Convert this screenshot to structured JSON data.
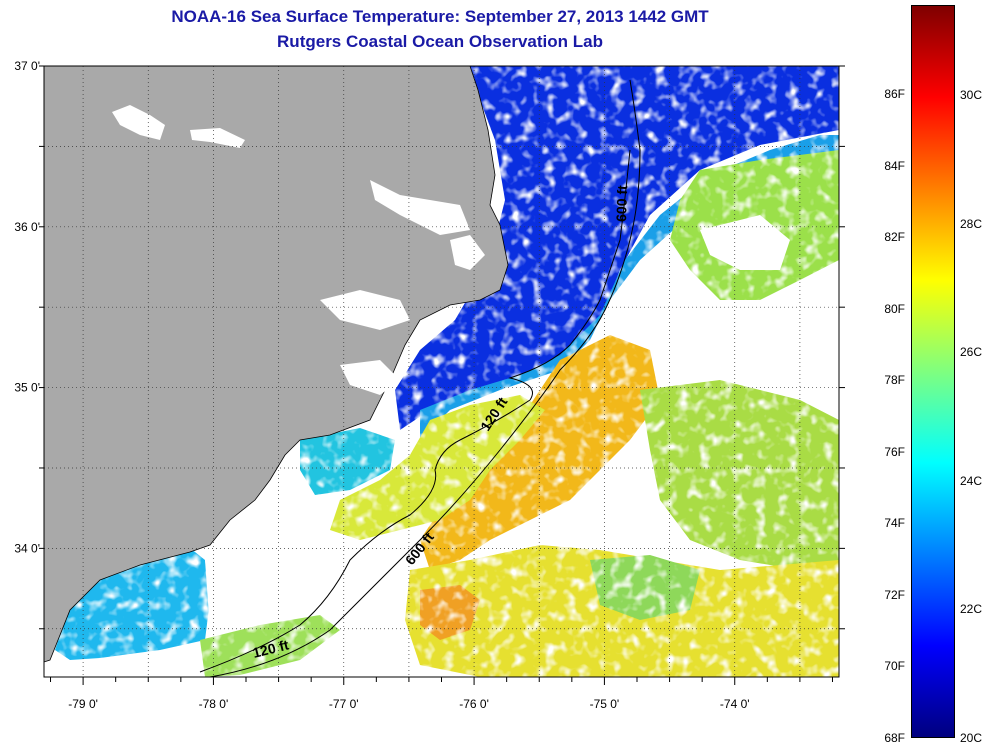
{
  "title": {
    "line1": "NOAA-16 Sea Surface Temperature:  September 27, 2013 1442 GMT",
    "line2": "Rutgers Coastal Ocean Observation Lab"
  },
  "map": {
    "lon_range": [
      -79.3,
      -73.2
    ],
    "lat_range": [
      33.2,
      37.0
    ],
    "lon_ticks": [
      {
        "value": -79,
        "label": "-79 0'"
      },
      {
        "value": -78,
        "label": "-78 0'"
      },
      {
        "value": -77,
        "label": "-77 0'"
      },
      {
        "value": -76,
        "label": "-76 0'"
      },
      {
        "value": -75,
        "label": "-75 0'"
      },
      {
        "value": -74,
        "label": "-74 0'"
      }
    ],
    "lat_ticks": [
      {
        "value": 37,
        "label": "37 0'"
      },
      {
        "value": 36,
        "label": "36 0'"
      },
      {
        "value": 35,
        "label": "35 0'"
      },
      {
        "value": 34,
        "label": "34 0'"
      }
    ],
    "grid": "dotted",
    "land_color": "#a9a9a9",
    "contours": [
      {
        "label": "120 ft"
      },
      {
        "label": "120 ft"
      },
      {
        "label": "600 ft"
      },
      {
        "label": "600 ft"
      }
    ]
  },
  "colorbar": {
    "colors": [
      "#00007f",
      "#0000ff",
      "#007fff",
      "#00ffff",
      "#7fff7f",
      "#ffff00",
      "#ff7f00",
      "#ff0000",
      "#7f0000"
    ],
    "fahrenheit": [
      "86F",
      "84F",
      "82F",
      "80F",
      "78F",
      "76F",
      "74F",
      "72F",
      "70F",
      "68F"
    ],
    "celsius": [
      "30C",
      "28C",
      "26C",
      "24C",
      "22C",
      "20C"
    ]
  }
}
